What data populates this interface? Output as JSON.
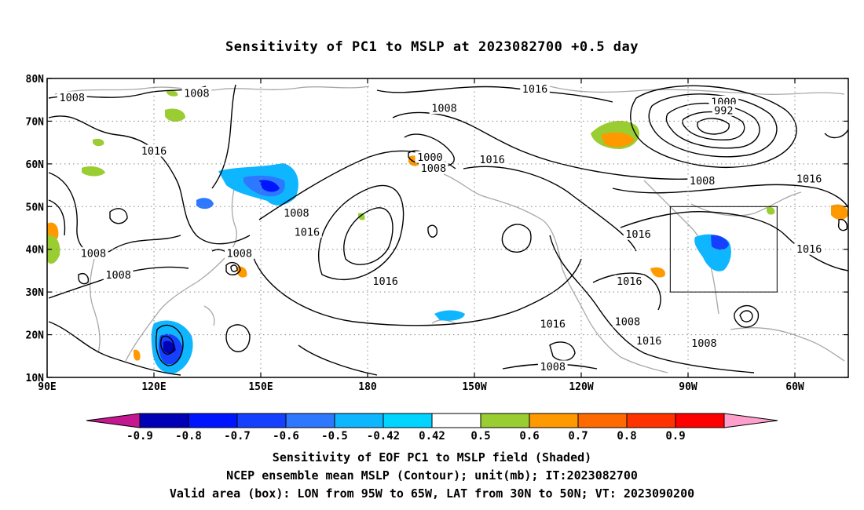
{
  "title": "Sensitivity of PC1 to MSLP at 2023082700 +0.5 day",
  "captions": {
    "line1": "Sensitivity of EOF PC1 to MSLP field (Shaded)",
    "line2": "NCEP ensemble mean MSLP (Contour); unit(mb); IT:2023082700",
    "line3": "Valid area (box): LON from 95W to 65W, LAT from 30N to 50N; VT: 2023090200"
  },
  "map": {
    "lon_range": [
      90,
      315
    ],
    "lat_range": [
      10,
      80
    ],
    "lon_ticks": [
      {
        "lon": 90,
        "label": "90E"
      },
      {
        "lon": 120,
        "label": "120E"
      },
      {
        "lon": 150,
        "label": "150E"
      },
      {
        "lon": 180,
        "label": "180"
      },
      {
        "lon": 210,
        "label": "150W"
      },
      {
        "lon": 240,
        "label": "120W"
      },
      {
        "lon": 270,
        "label": "90W"
      },
      {
        "lon": 300,
        "label": "60W"
      }
    ],
    "lat_ticks": [
      {
        "lat": 10,
        "label": "10N"
      },
      {
        "lat": 20,
        "label": "20N"
      },
      {
        "lat": 30,
        "label": "30N"
      },
      {
        "lat": 40,
        "label": "40N"
      },
      {
        "lat": 50,
        "label": "50N"
      },
      {
        "lat": 60,
        "label": "60N"
      },
      {
        "lat": 70,
        "label": "70N"
      },
      {
        "lat": 80,
        "label": "80N"
      }
    ],
    "grid": "dotted",
    "valid_box": {
      "lon_min": 265,
      "lon_max": 295,
      "lat_min": 30,
      "lat_max": 50
    },
    "contour_labels": [
      {
        "text": "1008",
        "lon": 97,
        "lat": 75.5
      },
      {
        "text": "1008",
        "lon": 132,
        "lat": 76.5
      },
      {
        "text": "1016",
        "lon": 120,
        "lat": 63
      },
      {
        "text": "1008",
        "lon": 103,
        "lat": 39
      },
      {
        "text": "1008",
        "lon": 110,
        "lat": 34
      },
      {
        "text": "1008",
        "lon": 144,
        "lat": 39
      },
      {
        "text": "1008",
        "lon": 160,
        "lat": 48.5
      },
      {
        "text": "1016",
        "lon": 163,
        "lat": 44
      },
      {
        "text": "1016",
        "lon": 185,
        "lat": 32.5
      },
      {
        "text": "1016",
        "lon": 227,
        "lat": 77.5
      },
      {
        "text": "1008",
        "lon": 201.5,
        "lat": 73
      },
      {
        "text": "1000",
        "lon": 197.5,
        "lat": 61.5
      },
      {
        "text": "1008",
        "lon": 198.5,
        "lat": 59
      },
      {
        "text": "1016",
        "lon": 215,
        "lat": 61
      },
      {
        "text": "1000",
        "lon": 280,
        "lat": 74.5
      },
      {
        "text": "992",
        "lon": 280,
        "lat": 72.5
      },
      {
        "text": "1008",
        "lon": 274,
        "lat": 56
      },
      {
        "text": "1016",
        "lon": 304,
        "lat": 56.5
      },
      {
        "text": "1016",
        "lon": 256,
        "lat": 43.5
      },
      {
        "text": "1016",
        "lon": 304,
        "lat": 40
      },
      {
        "text": "1016",
        "lon": 253.5,
        "lat": 32.5
      },
      {
        "text": "1016",
        "lon": 232,
        "lat": 22.5
      },
      {
        "text": "1008",
        "lon": 253,
        "lat": 23
      },
      {
        "text": "1016",
        "lon": 259,
        "lat": 18.5
      },
      {
        "text": "1008",
        "lon": 274.5,
        "lat": 18
      },
      {
        "text": "1008",
        "lon": 232,
        "lat": 12.5
      }
    ]
  },
  "colorbar": {
    "labels": [
      "-0.9",
      "-0.8",
      "-0.7",
      "-0.6",
      "-0.5",
      "-0.42",
      "0.42",
      "0.5",
      "0.6",
      "0.7",
      "0.8",
      "0.9"
    ],
    "colors": [
      "#c41890",
      "#0000b4",
      "#0015ff",
      "#1640ff",
      "#2d78ff",
      "#0eb6ff",
      "#00d4ff",
      "#ffffff",
      "#9acd32",
      "#ff9900",
      "#ff6a00",
      "#ff3300",
      "#ff0000",
      "#ffa0cc"
    ]
  }
}
